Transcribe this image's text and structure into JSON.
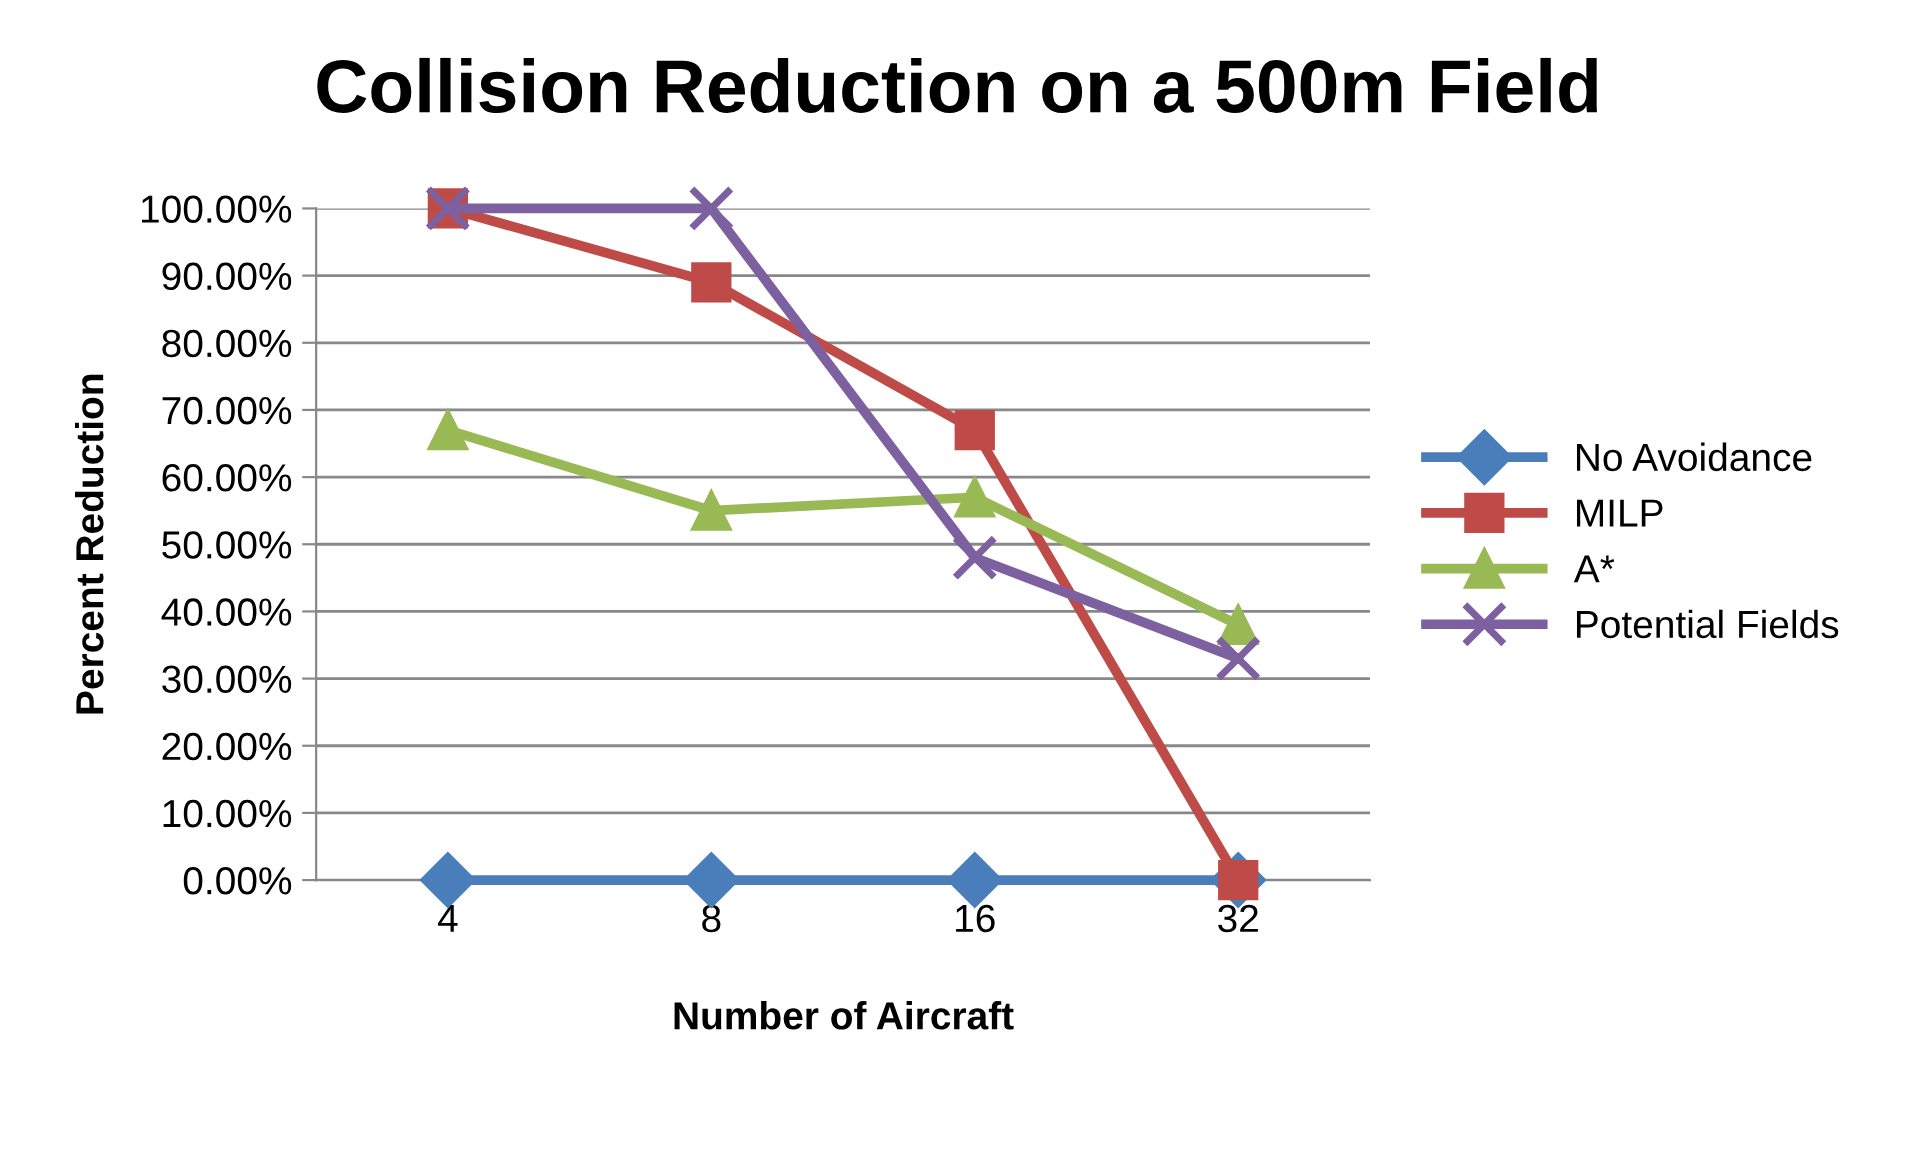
{
  "chart_data": {
    "type": "line",
    "title": "Collision Reduction on a 500m Field",
    "xlabel": "Number of Aircraft",
    "ylabel": "Percent Reduction",
    "categories": [
      "4",
      "8",
      "16",
      "32"
    ],
    "series": [
      {
        "name": "No Avoidance",
        "color": "#4a7ebb",
        "marker": "diamond",
        "values": [
          0,
          0,
          0,
          0
        ]
      },
      {
        "name": "MILP",
        "color": "#be4b48",
        "marker": "square",
        "values": [
          100,
          89,
          67,
          0
        ]
      },
      {
        "name": "A*",
        "color": "#98b954",
        "marker": "triangle",
        "values": [
          67,
          55,
          57,
          38
        ]
      },
      {
        "name": "Potential Fields",
        "color": "#7d60a0",
        "marker": "cross",
        "values": [
          100,
          100,
          48,
          33
        ]
      }
    ],
    "ylim": [
      0,
      100
    ],
    "yticks": [
      {
        "value": 0,
        "label": "0.00%"
      },
      {
        "value": 10,
        "label": "10.00%"
      },
      {
        "value": 20,
        "label": "20.00%"
      },
      {
        "value": 30,
        "label": "30.00%"
      },
      {
        "value": 40,
        "label": "40.00%"
      },
      {
        "value": 50,
        "label": "50.00%"
      },
      {
        "value": 60,
        "label": "60.00%"
      },
      {
        "value": 70,
        "label": "70.00%"
      },
      {
        "value": 80,
        "label": "80.00%"
      },
      {
        "value": 90,
        "label": "90.00%"
      },
      {
        "value": 100,
        "label": "100.00%"
      }
    ],
    "grid": "y",
    "legend": "right",
    "line_style": "solid"
  }
}
